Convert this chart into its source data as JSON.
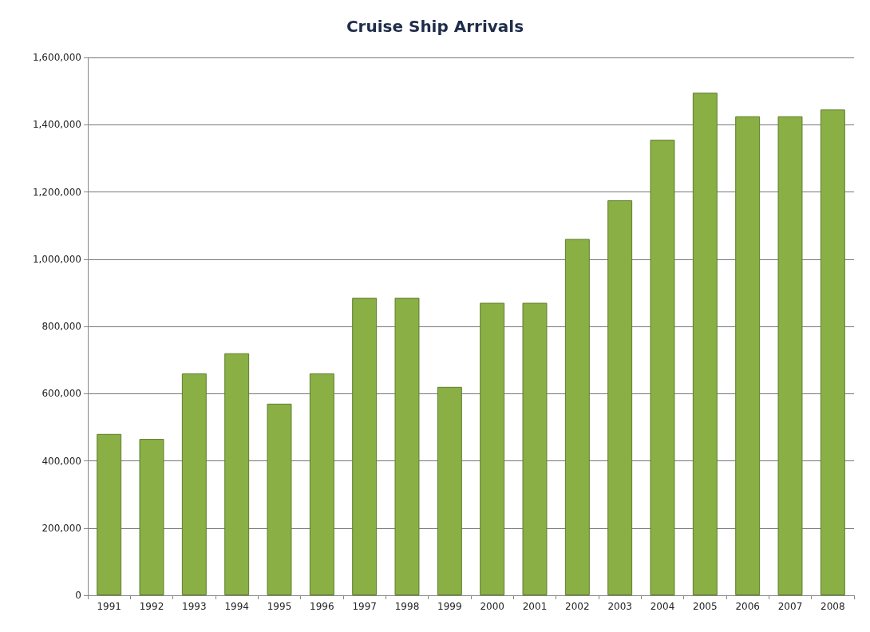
{
  "chart_data": {
    "type": "bar",
    "title": "Cruise Ship Arrivals",
    "categories": [
      "1991",
      "1992",
      "1993",
      "1994",
      "1995",
      "1996",
      "1997",
      "1998",
      "1999",
      "2000",
      "2001",
      "2002",
      "2003",
      "2004",
      "2005",
      "2006",
      "2007",
      "2008"
    ],
    "values": [
      480000,
      465000,
      660000,
      720000,
      570000,
      660000,
      885000,
      885000,
      620000,
      870000,
      870000,
      1060000,
      1175000,
      1355000,
      1495000,
      1425000,
      1425000,
      1445000
    ],
    "color": "#8aaf45",
    "ylim": [
      0,
      1600000
    ],
    "yticks": [
      {
        "value": 0,
        "label": "0"
      },
      {
        "value": 200000,
        "label": "200,000"
      },
      {
        "value": 400000,
        "label": "400,000"
      },
      {
        "value": 600000,
        "label": "600,000"
      },
      {
        "value": 800000,
        "label": "800,000"
      },
      {
        "value": 1000000,
        "label": "1,000,000"
      },
      {
        "value": 1200000,
        "label": "1,200,000"
      },
      {
        "value": 1400000,
        "label": "1,400,000"
      },
      {
        "value": 1600000,
        "label": "1,600,000"
      }
    ],
    "grid": "y"
  }
}
